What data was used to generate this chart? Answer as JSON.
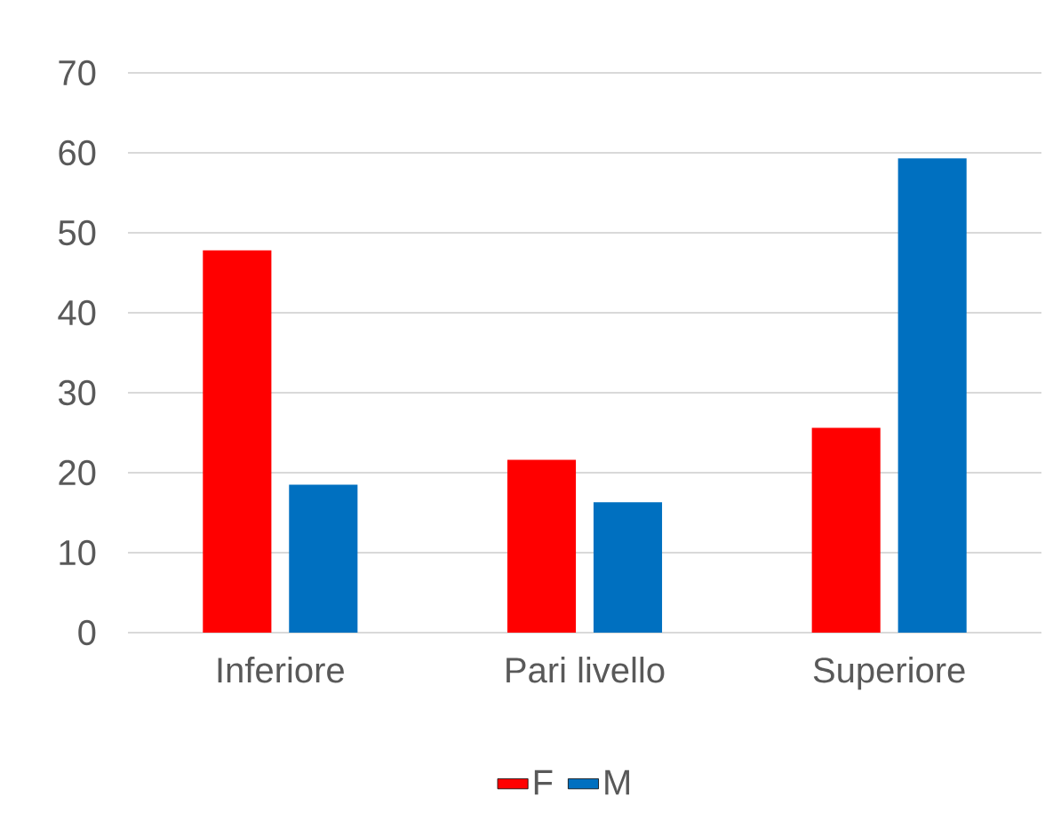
{
  "chart_data": {
    "type": "bar",
    "categories": [
      "Inferiore",
      "Pari livello",
      "Superiore"
    ],
    "series": [
      {
        "name": "F",
        "color": "#ff0000",
        "values": [
          47.8,
          21.6,
          25.6
        ]
      },
      {
        "name": "M",
        "color": "#0070c0",
        "values": [
          18.5,
          16.3,
          59.3
        ]
      }
    ],
    "ylim": [
      0,
      70
    ],
    "yticks": [
      0,
      10,
      20,
      30,
      40,
      50,
      60,
      70
    ],
    "grid": "y",
    "legend": "bottom"
  }
}
